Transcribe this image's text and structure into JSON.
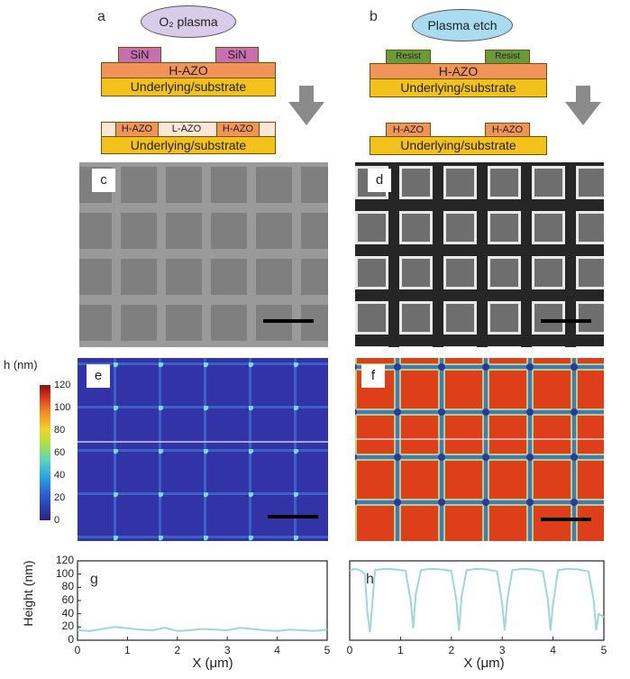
{
  "panels": {
    "a": "a",
    "b": "b",
    "c": "c",
    "d": "d",
    "e": "e",
    "f": "f",
    "g": "g",
    "h": "h"
  },
  "schematic_a": {
    "process": "O₂ plasma",
    "mask_left": "SiN",
    "mask_right": "SiN",
    "film": "H-AZO",
    "substrate": "Underlying/substrate",
    "result_left": "H-AZO",
    "result_mid": "L-AZO",
    "result_right": "H-AZO",
    "result_substrate": "Underlying/substrate"
  },
  "schematic_b": {
    "process": "Plasma etch",
    "mask_left": "Resist",
    "mask_right": "Resist",
    "film": "H-AZO",
    "substrate": "Underlying/substrate",
    "result_left": "H-AZO",
    "result_right": "H-AZO",
    "result_substrate": "Underlying/substrate"
  },
  "colorbar": {
    "title": "h (nm)",
    "ticks": [
      "120",
      "100",
      "80",
      "60",
      "40",
      "20",
      "0"
    ]
  },
  "colors": {
    "mask_pink": "#c86fb0",
    "mask_green": "#6a9a3a",
    "film_orange": "#f0945a",
    "substrate_yellow": "#f2c21a",
    "plasma_a": "#d9cce8",
    "plasma_b": "#a9dcef",
    "arrow": "#8a8a8a",
    "profile_line": "#9fd6dc"
  },
  "chart_data": [
    {
      "type": "line",
      "panel": "g",
      "xlabel": "X (μm)",
      "ylabel": "Height (nm)",
      "xlim": [
        0,
        5
      ],
      "ylim": [
        0,
        120
      ],
      "xticks": [
        "0",
        "1",
        "2",
        "3",
        "4",
        "5"
      ],
      "yticks": [
        "0",
        "20",
        "40",
        "60",
        "80",
        "100",
        "120"
      ],
      "x": [
        0,
        0.25,
        0.5,
        0.75,
        1,
        1.25,
        1.5,
        1.75,
        2,
        2.25,
        2.5,
        2.75,
        3,
        3.25,
        3.5,
        3.75,
        4,
        4.25,
        4.5,
        4.75,
        5
      ],
      "y": [
        15,
        14,
        17,
        20,
        18,
        16,
        15,
        19,
        14,
        15,
        17,
        16,
        15,
        19,
        17,
        15,
        14,
        16,
        15,
        14,
        16
      ]
    },
    {
      "type": "line",
      "panel": "h",
      "xlabel": "X (μm)",
      "ylabel": "",
      "xlim": [
        0,
        5
      ],
      "ylim": [
        0,
        120
      ],
      "xticks": [
        "0",
        "1",
        "2",
        "3",
        "4",
        "5"
      ],
      "x": [
        0,
        0.1,
        0.2,
        0.3,
        0.35,
        0.4,
        0.45,
        0.5,
        0.7,
        0.9,
        1.1,
        1.2,
        1.25,
        1.3,
        1.4,
        1.6,
        1.8,
        2.0,
        2.1,
        2.15,
        2.2,
        2.3,
        2.5,
        2.7,
        2.9,
        3.0,
        3.05,
        3.1,
        3.2,
        3.4,
        3.6,
        3.8,
        3.9,
        3.95,
        4.0,
        4.1,
        4.3,
        4.5,
        4.7,
        4.8,
        4.85,
        4.9,
        5.0
      ],
      "y": [
        105,
        108,
        106,
        100,
        40,
        12,
        60,
        106,
        108,
        107,
        105,
        60,
        18,
        70,
        106,
        108,
        107,
        105,
        60,
        15,
        65,
        106,
        108,
        107,
        104,
        55,
        15,
        60,
        106,
        108,
        107,
        104,
        60,
        15,
        55,
        106,
        108,
        107,
        104,
        60,
        15,
        40,
        35
      ]
    }
  ]
}
